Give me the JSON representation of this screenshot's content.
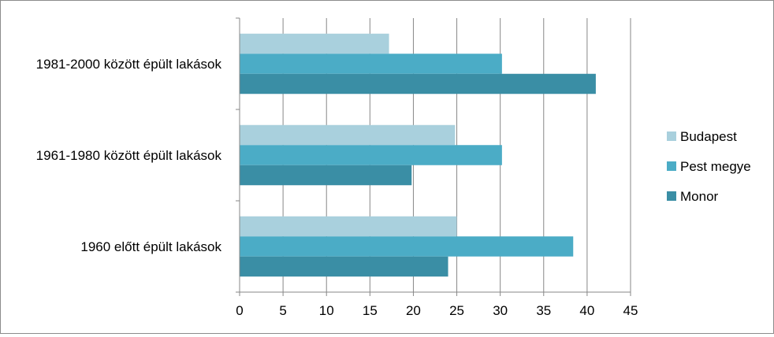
{
  "chart_data": {
    "type": "bar",
    "orientation": "horizontal",
    "categories": [
      "1981-2000 között épült lakások",
      "1961-1980 között épült lakások",
      "1960 előtt épült lakások"
    ],
    "series": [
      {
        "name": "Budapest",
        "values": [
          17.2,
          24.8,
          25.0
        ],
        "color": "#a9d0dd"
      },
      {
        "name": "Pest megye",
        "values": [
          30.2,
          30.2,
          38.4
        ],
        "color": "#4bacc6"
      },
      {
        "name": "Monor",
        "values": [
          41.0,
          19.8,
          24.0
        ],
        "color": "#3a8ea5"
      }
    ],
    "xlim": [
      0,
      45
    ],
    "xticks": [
      "0",
      "5",
      "10",
      "15",
      "20",
      "25",
      "30",
      "35",
      "40",
      "45"
    ],
    "grid": true,
    "legend": "right",
    "title": "",
    "xlabel": "",
    "ylabel": ""
  }
}
